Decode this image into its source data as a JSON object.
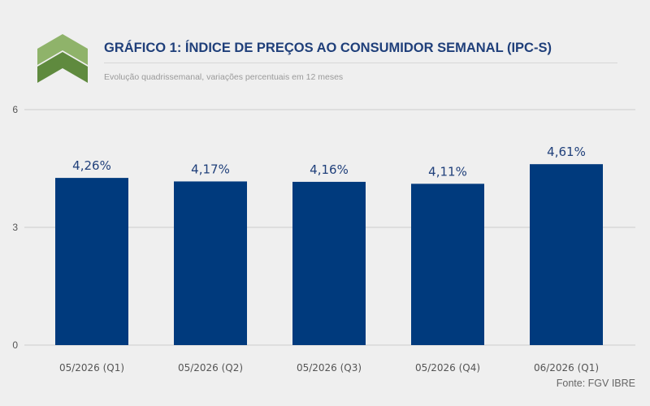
{
  "header": {
    "title": "GRÁFICO 1: ÍNDICE DE PREÇOS AO CONSUMIDOR SEMANAL (IPC-S)",
    "subtitle": "Evolução quadrissemanal, variações percentuais em 12 meses",
    "logo_icon": "chevron-logo-icon"
  },
  "footer": {
    "source": "Fonte: FGV IBRE"
  },
  "colors": {
    "bar": "#003a7d",
    "title": "#1f3f7a",
    "logo_light": "#8fb36a",
    "logo_dark": "#5f8a3e",
    "background": "#efefef",
    "gridline": "#d9d9d9"
  },
  "chart_data": {
    "type": "bar",
    "title": "GRÁFICO 1: ÍNDICE DE PREÇOS AO CONSUMIDOR SEMANAL (IPC-S)",
    "subtitle": "Evolução quadrissemanal, variações percentuais em 12 meses",
    "categories": [
      "05/2026 (Q1)",
      "05/2026 (Q2)",
      "05/2026 (Q3)",
      "05/2026 (Q4)",
      "06/2026 (Q1)"
    ],
    "values": [
      4.26,
      4.17,
      4.16,
      4.11,
      4.61
    ],
    "data_labels": [
      "4,26%",
      "4,17%",
      "4,16%",
      "4,11%",
      "4,61%"
    ],
    "ylim": [
      0,
      6
    ],
    "yticks": [
      0,
      3,
      6
    ],
    "ytick_labels": [
      "0",
      "3",
      "6"
    ],
    "xlabel": "",
    "ylabel": "",
    "grid": true,
    "legend": "none"
  }
}
